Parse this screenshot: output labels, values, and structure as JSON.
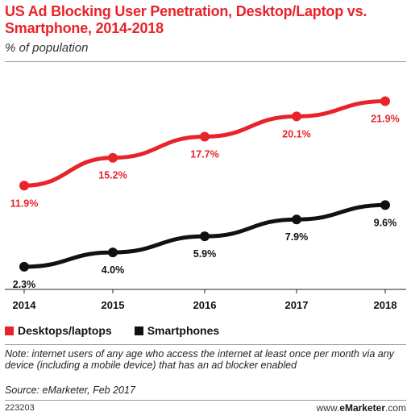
{
  "header": {
    "title": "US Ad Blocking User Penetration, Desktop/Laptop vs. Smartphone, 2014-2018",
    "subtitle": "% of population"
  },
  "colors": {
    "desktop": "#e8232a",
    "smartphone": "#111111",
    "axis": "#222222",
    "rule": "#9a9a9a"
  },
  "chart_data": {
    "type": "line",
    "title": "US Ad Blocking User Penetration, Desktop/Laptop vs. Smartphone, 2014-2018",
    "subtitle": "% of population",
    "x": [
      "2014",
      "2015",
      "2016",
      "2017",
      "2018"
    ],
    "series": [
      {
        "name": "Desktops/laptops",
        "values": [
          11.9,
          15.2,
          17.7,
          20.1,
          21.9
        ],
        "labels": [
          "11.9%",
          "15.2%",
          "17.7%",
          "20.1%",
          "21.9%"
        ],
        "color": "#e8232a"
      },
      {
        "name": "Smartphones",
        "values": [
          2.3,
          4.0,
          5.9,
          7.9,
          9.6
        ],
        "labels": [
          "2.3%",
          "4.0%",
          "5.9%",
          "7.9%",
          "9.6%"
        ],
        "color": "#111111"
      }
    ],
    "ylim": [
      0,
      25
    ],
    "grid": false,
    "legend_position": "bottom-left",
    "data_labels": true
  },
  "legend": {
    "items": [
      "Desktops/laptops",
      "Smartphones"
    ]
  },
  "footer": {
    "note": "Note: internet users of any age who access the internet at least once per month via any device (including a mobile device) that has an ad blocker enabled",
    "source": "Source: eMarketer, Feb 2017",
    "chart_id": "223203",
    "brand_prefix": "www.",
    "brand_name": "eMarketer",
    "brand_suffix": ".com"
  }
}
